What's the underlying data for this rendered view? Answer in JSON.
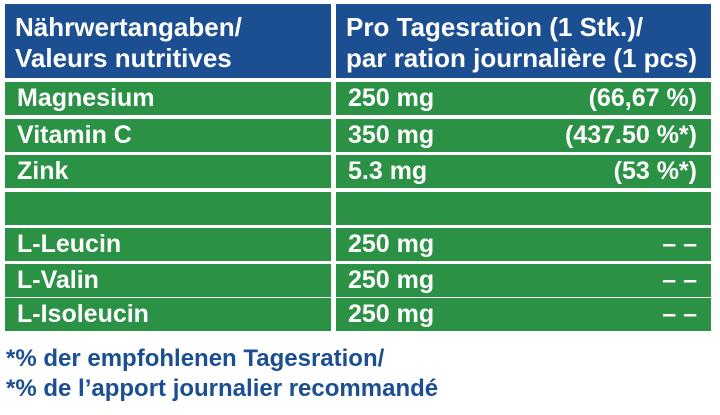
{
  "header": {
    "col1_line1": "Nährwertangaben/",
    "col1_line2": "Valeurs nutritives",
    "col2_line1": "Pro Tagesration (1 Stk.)/",
    "col2_line2": "par ration journalière (1 pcs)"
  },
  "rows": [
    {
      "name": "Magnesium",
      "amount": "250 mg",
      "percent": "(66,67 %)"
    },
    {
      "name": "Vitamin C",
      "amount": "350 mg",
      "percent": "(437.50 %*)"
    },
    {
      "name": "Zink",
      "amount": "5.3 mg",
      "percent": "(53 %*)"
    },
    {
      "name": "",
      "amount": "",
      "percent": ""
    },
    {
      "name": "L-Leucin",
      "amount": "250 mg",
      "percent": "– –"
    },
    {
      "name": "L-Valin",
      "amount": "250 mg",
      "percent": "– –"
    },
    {
      "name": "L-Isoleucin",
      "amount": "250 mg",
      "percent": "– –"
    }
  ],
  "footnote": {
    "line1": "*% der empfohlenen Tagesration/",
    "line2": "*% de l’apport journalier recommandé"
  },
  "colors": {
    "header_bg": "#1c4f92",
    "row_bg": "#2a9145",
    "text_header": "#ffffff",
    "footnote_text": "#1c4f92"
  }
}
